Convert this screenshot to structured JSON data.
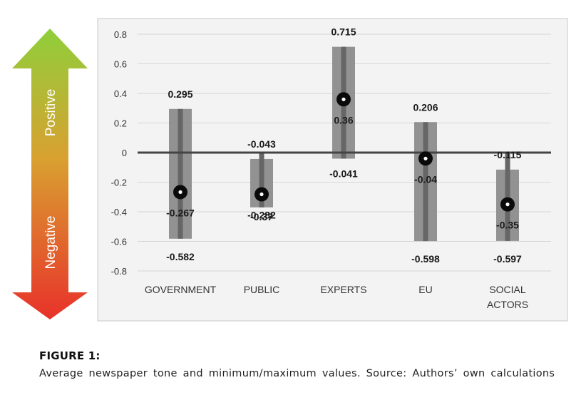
{
  "arrow": {
    "positive_label": "Positive",
    "negative_label": "Negative",
    "top_color": "#8fcf3a",
    "bottom_color": "#e8322a"
  },
  "chart_data": {
    "type": "box",
    "categories": [
      "GOVERNMENT",
      "PUBLIC",
      "EXPERTS",
      "EU",
      "SOCIAL ACTORS"
    ],
    "category_lines": [
      [
        "GOVERNMENT"
      ],
      [
        "PUBLIC"
      ],
      [
        "EXPERTS"
      ],
      [
        "EU"
      ],
      [
        "SOCIAL",
        "ACTORS"
      ]
    ],
    "max": [
      0.295,
      -0.043,
      0.715,
      0.206,
      -0.115
    ],
    "mean": [
      -0.267,
      -0.282,
      0.36,
      -0.04,
      -0.35
    ],
    "min": [
      -0.582,
      -0.37,
      -0.041,
      -0.598,
      -0.597
    ],
    "max_labels": [
      "0.295",
      "-0.043",
      "0.715",
      "0.206",
      "-0.115"
    ],
    "mean_labels": [
      "-0.267",
      "-0.282",
      "0.36",
      "-0.04",
      "-0.35"
    ],
    "min_labels": [
      "-0.582",
      "-0.37",
      "-0.041",
      "-0.598",
      "-0.597"
    ],
    "ylim": [
      -0.8,
      0.8
    ],
    "yticks": [
      "0.8",
      "0.6",
      "0.4",
      "0.2",
      "0",
      "-0.2",
      "-0.4",
      "-0.6",
      "-0.8"
    ],
    "grid": true,
    "bar_color": "#8c8c8c",
    "zero_line_color": "#444444"
  },
  "caption": {
    "title": "FIGURE 1:",
    "text": "Average newspaper tone and minimum/maximum values. Source: Authors’ own calculations"
  }
}
